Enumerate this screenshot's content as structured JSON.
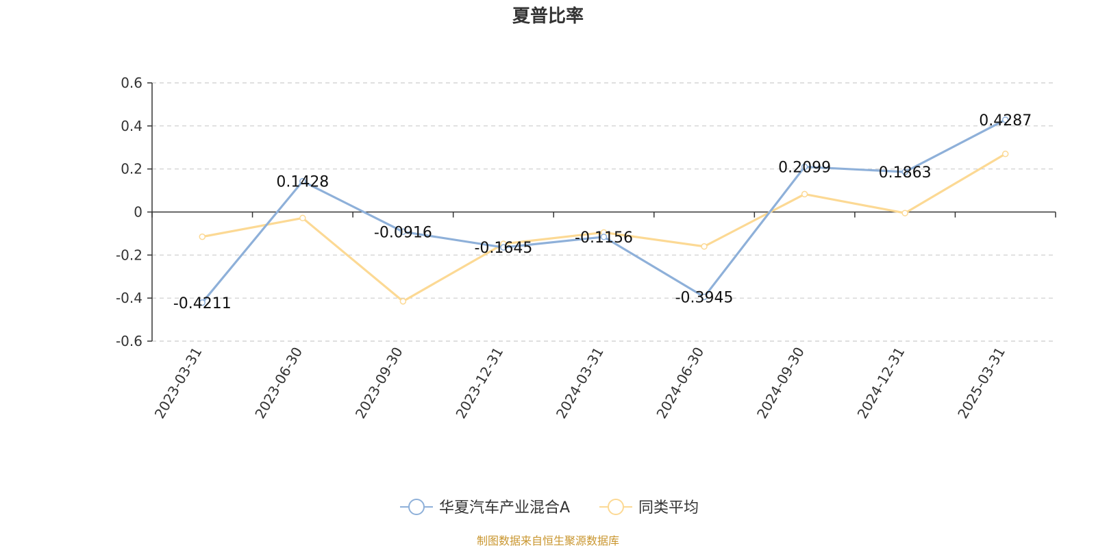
{
  "chart_data": {
    "type": "line",
    "title": "夏普比率",
    "x": [
      "2023-03-31",
      "2023-06-30",
      "2023-09-30",
      "2023-12-31",
      "2024-03-31",
      "2024-06-30",
      "2024-09-30",
      "2024-12-31",
      "2025-03-31"
    ],
    "ylim": [
      -0.6,
      0.6
    ],
    "yticks": [
      0.6,
      0.4,
      0.2,
      0,
      -0.2,
      -0.4,
      -0.6
    ],
    "ytick_labels": [
      "0.6",
      "0.4",
      "0.2",
      "0",
      "-0.2",
      "-0.4",
      "-0.6"
    ],
    "grid": true,
    "legend_position": "bottom-center",
    "series": [
      {
        "name": "华夏汽车产业混合A",
        "color": "#8eb0d9",
        "values": [
          -0.4211,
          0.1428,
          -0.0916,
          -0.1645,
          -0.1156,
          -0.3945,
          0.2099,
          0.1863,
          0.4287
        ],
        "labels": [
          "-0.4211",
          "0.1428",
          "-0.0916",
          "-0.1645",
          "-0.1156",
          "-0.3945",
          "0.2099",
          "0.1863",
          "0.4287"
        ]
      },
      {
        "name": "同类平均",
        "color": "#fcd994",
        "values": [
          -0.115,
          -0.028,
          -0.415,
          -0.148,
          -0.095,
          -0.16,
          0.083,
          -0.005,
          0.27
        ]
      }
    ]
  },
  "source": "制图数据来自恒生聚源数据库"
}
